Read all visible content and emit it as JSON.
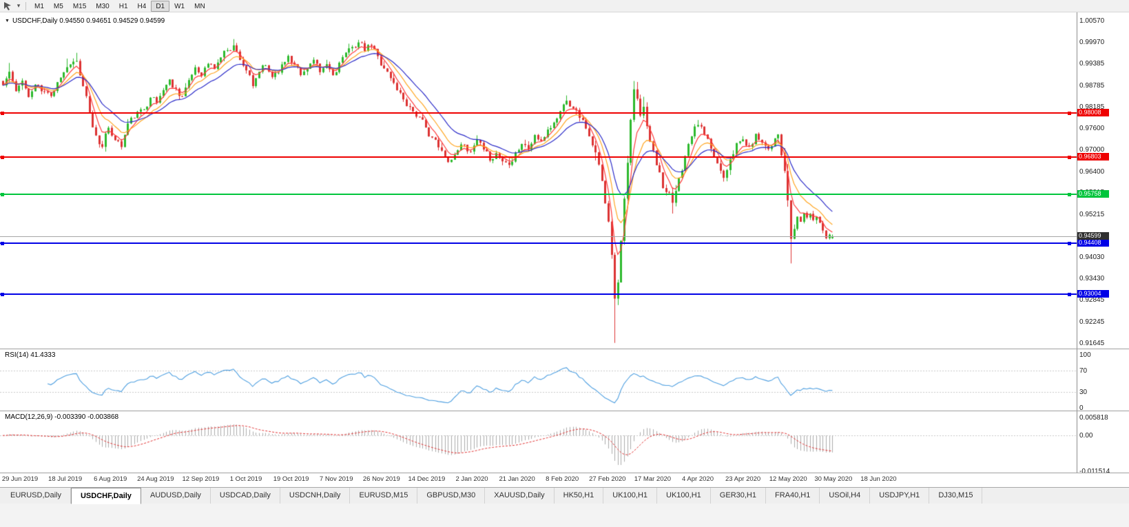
{
  "toolbar": {
    "timeframes": [
      "M1",
      "M5",
      "M15",
      "M30",
      "H1",
      "H4",
      "D1",
      "W1",
      "MN"
    ],
    "active_timeframe": "D1",
    "icons": [
      "cursor-icon",
      "chevron-down-icon"
    ]
  },
  "chart": {
    "title": "USDCHF,Daily 0.94550 0.94651 0.94529 0.94599",
    "price_axis_ticks": [
      "1.00570",
      "0.99970",
      "0.99385",
      "0.98785",
      "0.98185",
      "0.97600",
      "0.97000",
      "0.96400",
      "0.95815",
      "0.95215",
      "0.94630",
      "0.94030",
      "0.93430",
      "0.92845",
      "0.92245",
      "0.91645"
    ],
    "levels": [
      {
        "label": "0.98008",
        "price": 0.98008,
        "color": "#EE0000"
      },
      {
        "label": "0.96803",
        "price": 0.96803,
        "color": "#EE0000"
      },
      {
        "label": "0.95758",
        "price": 0.95758,
        "color": "#00C53C"
      },
      {
        "label": "0.94408",
        "price": 0.94408,
        "color": "#0000E6"
      },
      {
        "label": "0.93004",
        "price": 0.93004,
        "color": "#0000E6"
      }
    ],
    "current_price": {
      "label": "0.94599",
      "price": 0.94599,
      "line_color": "#a6a6a6",
      "label_bg": "#2F2F2F"
    },
    "date_labels": [
      "29 Jun 2019",
      "18 Jul 2019",
      "6 Aug 2019",
      "24 Aug 2019",
      "12 Sep 2019",
      "1 Oct 2019",
      "19 Oct 2019",
      "7 Nov 2019",
      "26 Nov 2019",
      "14 Dec 2019",
      "2 Jan 2020",
      "21 Jan 2020",
      "8 Feb 2020",
      "27 Feb 2020",
      "17 Mar 2020",
      "4 Apr 2020",
      "23 Apr 2020",
      "12 May 2020",
      "30 May 2020",
      "18 Jun 2020"
    ]
  },
  "rsi_panel": {
    "label": "RSI(14) 41.4333",
    "ticks": [
      "100",
      "70",
      "30",
      "0"
    ]
  },
  "macd_panel": {
    "label": "MACD(12,26,9) -0.003390 -0.003868",
    "ticks": [
      "0.005818",
      "0.00",
      "-0.011514"
    ]
  },
  "tab_bar": {
    "tabs": [
      "EURUSD,Daily",
      "USDCHF,Daily",
      "AUDUSD,Daily",
      "USDCAD,Daily",
      "USDCNH,Daily",
      "EURUSD,M15",
      "GBPUSD,M30",
      "XAUUSD,Daily",
      "HK50,H1",
      "UK100,H1",
      "UK100,H1",
      "GER30,H1",
      "FRA40,H1",
      "USOil,H4",
      "USDJPY,H1",
      "DJ30,M15"
    ],
    "active_index": 1
  },
  "chart_data": {
    "type": "candlestick",
    "symbol": "USDCHF",
    "timeframe": "Daily",
    "ohlc_display": {
      "open": "0.94550",
      "high": "0.94651",
      "low": "0.94529",
      "close": "0.94599"
    },
    "y_axis_range": [
      0.91645,
      1.0057
    ],
    "x_axis_range": [
      "29 Jun 2019",
      "18 Jun 2020"
    ],
    "horizontal_levels": [
      0.98008,
      0.96803,
      0.95758,
      0.94408,
      0.93004
    ],
    "candle_count": 260,
    "noise_seed": 11,
    "noise_amplitude": 0.00105,
    "wick_amplitude": 0.0016,
    "price_path_anchors": [
      [
        0,
        0.9878
      ],
      [
        2,
        0.9915
      ],
      [
        4,
        0.986
      ],
      [
        6,
        0.9893
      ],
      [
        8,
        0.9845
      ],
      [
        10,
        0.988
      ],
      [
        12,
        0.9862
      ],
      [
        15,
        0.985
      ],
      [
        17,
        0.9888
      ],
      [
        19,
        0.9915
      ],
      [
        21,
        0.9938
      ],
      [
        23,
        0.9945
      ],
      [
        25,
        0.9872
      ],
      [
        27,
        0.98
      ],
      [
        29,
        0.9738
      ],
      [
        31,
        0.9712
      ],
      [
        33,
        0.9758
      ],
      [
        35,
        0.9728
      ],
      [
        37,
        0.9708
      ],
      [
        39,
        0.9772
      ],
      [
        41,
        0.979
      ],
      [
        44,
        0.9812
      ],
      [
        46,
        0.9846
      ],
      [
        48,
        0.983
      ],
      [
        50,
        0.9866
      ],
      [
        52,
        0.9893
      ],
      [
        54,
        0.9868
      ],
      [
        56,
        0.9848
      ],
      [
        58,
        0.989
      ],
      [
        60,
        0.9928
      ],
      [
        62,
        0.9906
      ],
      [
        64,
        0.9938
      ],
      [
        66,
        0.9924
      ],
      [
        68,
        0.9956
      ],
      [
        70,
        0.9977
      ],
      [
        72,
        0.9988
      ],
      [
        74,
        0.995
      ],
      [
        76,
        0.992
      ],
      [
        78,
        0.9874
      ],
      [
        80,
        0.9916
      ],
      [
        82,
        0.9933
      ],
      [
        84,
        0.9902
      ],
      [
        87,
        0.9934
      ],
      [
        89,
        0.996
      ],
      [
        91,
        0.9938
      ],
      [
        93,
        0.9906
      ],
      [
        95,
        0.9926
      ],
      [
        97,
        0.9948
      ],
      [
        99,
        0.9912
      ],
      [
        101,
        0.9936
      ],
      [
        103,
        0.9906
      ],
      [
        105,
        0.994
      ],
      [
        107,
        0.9966
      ],
      [
        109,
        0.9986
      ],
      [
        111,
        0.9996
      ],
      [
        113,
        0.9974
      ],
      [
        115,
        0.9988
      ],
      [
        117,
        0.9958
      ],
      [
        119,
        0.9926
      ],
      [
        121,
        0.9898
      ],
      [
        123,
        0.9866
      ],
      [
        125,
        0.984
      ],
      [
        127,
        0.9818
      ],
      [
        130,
        0.9788
      ],
      [
        132,
        0.976
      ],
      [
        134,
        0.9734
      ],
      [
        136,
        0.9706
      ],
      [
        138,
        0.968
      ],
      [
        140,
        0.9672
      ],
      [
        142,
        0.97
      ],
      [
        144,
        0.9716
      ],
      [
        146,
        0.9692
      ],
      [
        148,
        0.9726
      ],
      [
        150,
        0.9698
      ],
      [
        152,
        0.9672
      ],
      [
        154,
        0.969
      ],
      [
        156,
        0.9668
      ],
      [
        158,
        0.966
      ],
      [
        160,
        0.9692
      ],
      [
        162,
        0.9716
      ],
      [
        164,
        0.97
      ],
      [
        166,
        0.974
      ],
      [
        168,
        0.9722
      ],
      [
        170,
        0.9756
      ],
      [
        172,
        0.9774
      ],
      [
        174,
        0.9806
      ],
      [
        176,
        0.9838
      ],
      [
        178,
        0.9816
      ],
      [
        180,
        0.979
      ],
      [
        182,
        0.976
      ],
      [
        184,
        0.9708
      ],
      [
        186,
        0.9655
      ],
      [
        187,
        0.9618
      ],
      [
        188,
        0.9556
      ],
      [
        189,
        0.9498
      ],
      [
        190,
        0.9412
      ],
      [
        191,
        0.9292
      ],
      [
        192,
        0.9334
      ],
      [
        193,
        0.9452
      ],
      [
        194,
        0.956
      ],
      [
        195,
        0.9662
      ],
      [
        196,
        0.978
      ],
      [
        197,
        0.9866
      ],
      [
        198,
        0.9838
      ],
      [
        199,
        0.9792
      ],
      [
        200,
        0.982
      ],
      [
        201,
        0.9762
      ],
      [
        203,
        0.97
      ],
      [
        205,
        0.9636
      ],
      [
        207,
        0.9582
      ],
      [
        209,
        0.955
      ],
      [
        211,
        0.962
      ],
      [
        213,
        0.9682
      ],
      [
        215,
        0.9738
      ],
      [
        217,
        0.977
      ],
      [
        219,
        0.9742
      ],
      [
        221,
        0.97
      ],
      [
        223,
        0.9662
      ],
      [
        225,
        0.9624
      ],
      [
        227,
        0.9676
      ],
      [
        229,
        0.9716
      ],
      [
        231,
        0.9728
      ],
      [
        233,
        0.9706
      ],
      [
        235,
        0.9742
      ],
      [
        237,
        0.9722
      ],
      [
        239,
        0.9702
      ],
      [
        241,
        0.9732
      ],
      [
        242,
        0.9744
      ],
      [
        243,
        0.968
      ],
      [
        244,
        0.964
      ],
      [
        245,
        0.956
      ],
      [
        246,
        0.9448
      ],
      [
        247,
        0.9482
      ],
      [
        248,
        0.9514
      ],
      [
        249,
        0.95
      ],
      [
        250,
        0.9526
      ],
      [
        251,
        0.9512
      ],
      [
        252,
        0.952
      ],
      [
        253,
        0.9506
      ],
      [
        254,
        0.9514
      ],
      [
        255,
        0.9498
      ],
      [
        256,
        0.9478
      ],
      [
        257,
        0.9456
      ],
      [
        258,
        0.9464
      ],
      [
        259,
        0.946
      ]
    ],
    "volatile_ranges": [
      {
        "from": 24,
        "to": 32,
        "factor": 1.9
      },
      {
        "from": 184,
        "to": 201,
        "factor": 2.2
      },
      {
        "from": 202,
        "to": 210,
        "factor": 1.5
      },
      {
        "from": 243,
        "to": 247,
        "factor": 2.0
      }
    ],
    "wick_low_overrides": {
      "31": 0.9703,
      "37": 0.97,
      "158": 0.9649,
      "191": 0.9165,
      "209": 0.9523,
      "246": 0.9385
    },
    "wick_high_overrides": {
      "2": 0.994,
      "20": 0.9952,
      "23": 0.9968,
      "72": 1.0006,
      "111": 1.0004,
      "176": 0.985,
      "197": 0.989,
      "217": 0.9782
    },
    "last_candle": {
      "open": 0.9455,
      "high": 0.94651,
      "low": 0.94529,
      "close": 0.94599
    },
    "moving_averages": [
      {
        "name": "fast",
        "period": 5,
        "color": "#FF3B3B"
      },
      {
        "name": "mid",
        "period": 10,
        "color": "#FFA520"
      },
      {
        "name": "slow",
        "period": 18,
        "color": "#2A2AC8"
      }
    ],
    "indicators": {
      "rsi": {
        "period": 14,
        "current": 41.4333,
        "levels": [
          30,
          70
        ],
        "axis": [
          100,
          70,
          30,
          0
        ]
      },
      "macd": {
        "fast": 12,
        "slow": 26,
        "signal": 9,
        "current_macd": -0.00339,
        "current_signal": -0.003868,
        "scale_max": 0.005818,
        "scale_min": -0.011514
      }
    },
    "colors": {
      "candle_up": "#2DB92D",
      "candle_down": "#DC3232",
      "rsi_line": "#4E9FE0",
      "macd_histogram": "#ABABAB",
      "macd_signal": "#E03030",
      "grid_dashed": "#C8C8C8"
    }
  }
}
